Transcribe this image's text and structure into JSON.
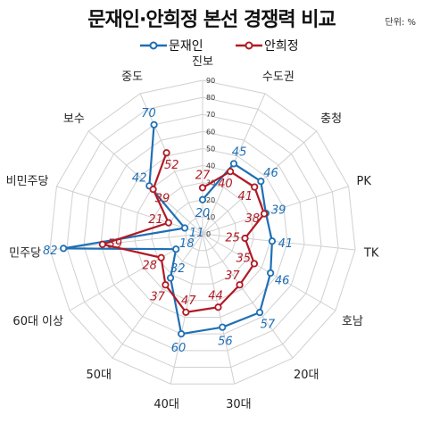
{
  "title": "문재인·안희정 본선 경쟁력 비교",
  "unit": "단위: %",
  "colors": {
    "series_moon": "#1f6fb5",
    "series_ahn": "#b01a24",
    "grid": "#d0d0d0",
    "tick_text": "#333333",
    "category_text": "#222222"
  },
  "chart_data": {
    "type": "radar",
    "categories": [
      "진보",
      "수도권",
      "충청",
      "PK",
      "TK",
      "호남",
      "20대",
      "30대",
      "40대",
      "50대",
      "60대 이상",
      "민주당",
      "비민주당",
      "보수",
      "중도"
    ],
    "series": [
      {
        "name": "문재인",
        "values": [
          20,
          45,
          46,
          39,
          41,
          46,
          57,
          56,
          60,
          32,
          18,
          82,
          11,
          42,
          70
        ]
      },
      {
        "name": "안희정",
        "values": [
          27,
          40,
          41,
          38,
          25,
          35,
          37,
          44,
          47,
          37,
          28,
          59,
          21,
          39,
          52
        ]
      }
    ],
    "rlim": [
      0,
      90
    ],
    "ticks": [
      "0",
      "10",
      "20",
      "30",
      "40",
      "50",
      "60",
      "70",
      "80",
      "90"
    ],
    "grid": true,
    "legend_position": "top"
  }
}
